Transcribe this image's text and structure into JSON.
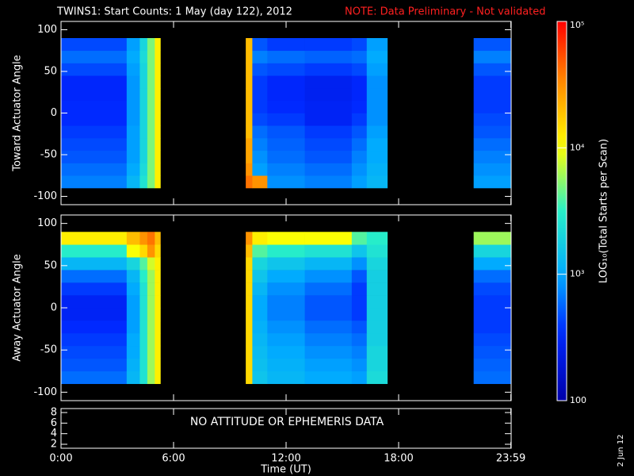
{
  "chart_data": {
    "type": "heatmap",
    "title": "TWINS1: Start Counts:  1 May (day 122), 2012",
    "note": "NOTE: Data Preliminary - Not validated",
    "stamp": "2 Jun 12",
    "xlabel": "Time (UT)",
    "xlim": [
      0,
      24
    ],
    "xticks": [
      {
        "value": 0,
        "label": "0:00"
      },
      {
        "value": 6,
        "label": "6:00"
      },
      {
        "value": 12,
        "label": "12:00"
      },
      {
        "value": 18,
        "label": "18:00"
      },
      {
        "value": 23.983,
        "label": "23:59"
      }
    ],
    "xbins": [
      0,
      3.5,
      4.2,
      4.6,
      5.0,
      5.3,
      9.85,
      10.2,
      11,
      13,
      15.5,
      16.3,
      17.4,
      22.0,
      24
    ],
    "ybins": [
      -90,
      -75,
      -60,
      -45,
      -30,
      -15,
      0,
      15,
      30,
      45,
      60,
      75,
      90
    ],
    "colorbar": {
      "label": "LOG₁₀(Total Starts per Scan)",
      "log": true,
      "lim": [
        100,
        100000
      ],
      "ticks": [
        100,
        {
          "value": 1000,
          "label": "10³"
        },
        {
          "value": 10000,
          "label": "10⁴"
        },
        {
          "value": 100000,
          "label": "10⁵"
        }
      ]
    },
    "panels": [
      {
        "type": "heatmap",
        "ylabel": "Toward Actuator Angle",
        "ylim": [
          -110,
          110
        ],
        "yticks": [
          -100,
          -50,
          0,
          50,
          100
        ],
        "values": [
          [
            700,
            1200,
            2500,
            5000,
            12000,
            null,
            40000,
            30000,
            800,
            700,
            900,
            1200,
            null,
            900
          ],
          [
            600,
            1000,
            2200,
            5000,
            12000,
            null,
            30000,
            900,
            700,
            600,
            800,
            1100,
            null,
            800
          ],
          [
            500,
            900,
            2000,
            5000,
            12000,
            null,
            25000,
            800,
            600,
            500,
            700,
            1000,
            null,
            700
          ],
          [
            450,
            900,
            2000,
            5000,
            12000,
            null,
            25000,
            700,
            550,
            450,
            600,
            1000,
            null,
            600
          ],
          [
            400,
            900,
            2000,
            5000,
            12000,
            null,
            20000,
            600,
            500,
            400,
            500,
            900,
            null,
            500
          ],
          [
            350,
            850,
            2000,
            5000,
            12000,
            null,
            20000,
            450,
            400,
            300,
            400,
            800,
            null,
            450
          ],
          [
            350,
            850,
            2000,
            5000,
            12000,
            null,
            20000,
            400,
            350,
            300,
            350,
            800,
            null,
            400
          ],
          [
            330,
            850,
            2000,
            5000,
            12000,
            null,
            20000,
            400,
            330,
            280,
            330,
            800,
            null,
            400
          ],
          [
            330,
            850,
            2000,
            5000,
            12000,
            null,
            20000,
            400,
            330,
            280,
            330,
            800,
            null,
            400
          ],
          [
            450,
            900,
            2000,
            5000,
            12000,
            null,
            20000,
            500,
            450,
            400,
            450,
            900,
            null,
            500
          ],
          [
            600,
            1000,
            2200,
            5000,
            12000,
            null,
            20000,
            700,
            600,
            550,
            600,
            1000,
            null,
            700
          ],
          [
            450,
            900,
            2000,
            5000,
            12000,
            null,
            20000,
            500,
            400,
            400,
            450,
            900,
            null,
            500
          ]
        ]
      },
      {
        "type": "heatmap",
        "ylabel": "Away Actuator Angle",
        "ylim": [
          -110,
          110
        ],
        "yticks": [
          -100,
          -50,
          0,
          50,
          100
        ],
        "values": [
          [
            600,
            1200,
            2500,
            6000,
            12000,
            null,
            15000,
            1500,
            1200,
            1000,
            900,
            2200,
            null,
            600
          ],
          [
            500,
            1100,
            2500,
            6000,
            12000,
            null,
            15000,
            1400,
            1100,
            900,
            800,
            2000,
            null,
            550
          ],
          [
            450,
            1000,
            2500,
            6000,
            12000,
            null,
            15000,
            1300,
            1000,
            800,
            700,
            2000,
            null,
            500
          ],
          [
            400,
            1000,
            2500,
            6000,
            12000,
            null,
            15000,
            1200,
            900,
            700,
            600,
            1800,
            null,
            450
          ],
          [
            350,
            900,
            2500,
            6000,
            12000,
            null,
            15000,
            1100,
            800,
            600,
            500,
            1800,
            null,
            400
          ],
          [
            300,
            900,
            2500,
            6000,
            12000,
            null,
            15000,
            1000,
            700,
            500,
            400,
            1800,
            null,
            400
          ],
          [
            300,
            900,
            2500,
            6000,
            12000,
            null,
            15000,
            1000,
            700,
            500,
            400,
            1800,
            null,
            400
          ],
          [
            400,
            1000,
            2500,
            6000,
            12000,
            null,
            15000,
            1200,
            800,
            600,
            400,
            1800,
            null,
            450
          ],
          [
            600,
            1200,
            3000,
            6000,
            12000,
            null,
            15000,
            1500,
            1000,
            800,
            500,
            1800,
            null,
            600
          ],
          [
            1200,
            2000,
            4000,
            8000,
            12000,
            null,
            15000,
            2000,
            1500,
            1200,
            800,
            2000,
            null,
            1000
          ],
          [
            3000,
            10000,
            15000,
            30000,
            15000,
            null,
            20000,
            4000,
            3000,
            2500,
            1500,
            2500,
            null,
            2000
          ],
          [
            12000,
            20000,
            30000,
            40000,
            20000,
            null,
            30000,
            12000,
            10000,
            10000,
            4000,
            3000,
            null,
            6000
          ]
        ]
      },
      {
        "type": "blank",
        "annotation": "NO ATTITUDE OR EPHEMERIS DATA",
        "ylim": [
          1.25,
          8.75
        ],
        "yticks": [
          2,
          4,
          6,
          8
        ]
      }
    ]
  }
}
